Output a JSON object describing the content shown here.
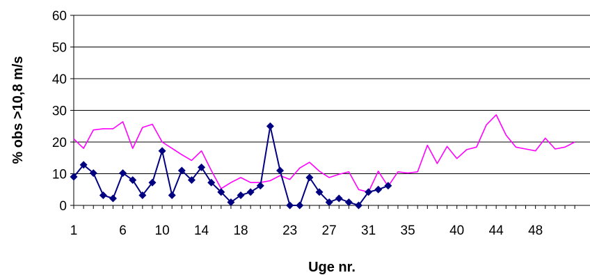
{
  "chart_data": {
    "type": "line",
    "title": "",
    "xlabel": "Uge nr.",
    "ylabel": "% obs >10,8 m/s",
    "xlim": [
      1,
      52
    ],
    "ylim": [
      0,
      60
    ],
    "yticks": [
      0,
      10,
      20,
      30,
      40,
      50,
      60
    ],
    "xticks": [
      1,
      6,
      10,
      14,
      18,
      23,
      27,
      31,
      35,
      40,
      44,
      48
    ],
    "grid": "horizontal",
    "legend": "none",
    "series": [
      {
        "color": "#ff00ff",
        "marker": "none",
        "x": [
          1,
          2,
          3,
          4,
          5,
          6,
          7,
          8,
          9,
          10,
          11,
          12,
          13,
          14,
          15,
          16,
          17,
          18,
          19,
          20,
          21,
          22,
          23,
          24,
          25,
          26,
          27,
          28,
          29,
          30,
          31,
          32,
          33,
          34,
          35,
          36,
          37,
          38,
          39,
          40,
          41,
          42,
          43,
          44,
          45,
          46,
          47,
          48,
          49,
          50,
          51,
          52
        ],
        "values": [
          21,
          18,
          23.8,
          24.2,
          24.2,
          26.4,
          18,
          24.6,
          25.6,
          20,
          18,
          16,
          14.2,
          17.2,
          11,
          5.3,
          7.2,
          8.8,
          7.2,
          7.2,
          7.8,
          9.4,
          8.2,
          11.8,
          13.6,
          10.8,
          8.8,
          9.8,
          10.6,
          5,
          4.2,
          10.8,
          6,
          10.6,
          10.2,
          10.6,
          19,
          13.2,
          18.6,
          14.8,
          17.6,
          18.4,
          25.4,
          28.6,
          22.2,
          18.4,
          17.8,
          17.2,
          21.2,
          17.8,
          18.4,
          20
        ]
      },
      {
        "color": "#000080",
        "marker": "diamond",
        "x": [
          1,
          2,
          3,
          4,
          5,
          6,
          7,
          8,
          9,
          10,
          11,
          12,
          13,
          14,
          15,
          16,
          17,
          18,
          19,
          20,
          21,
          22,
          23,
          24,
          25,
          26,
          27,
          28,
          29,
          30,
          31,
          32,
          33
        ],
        "values": [
          9,
          12.8,
          10.2,
          3.2,
          2.2,
          10.2,
          8,
          3.2,
          7.2,
          17.2,
          3.2,
          11,
          8,
          12,
          7.2,
          4.2,
          1,
          3.2,
          4.2,
          6.2,
          25,
          11,
          0,
          0,
          8.8,
          4.2,
          1,
          2.2,
          1,
          0,
          4.2,
          5,
          6.2
        ]
      }
    ]
  }
}
